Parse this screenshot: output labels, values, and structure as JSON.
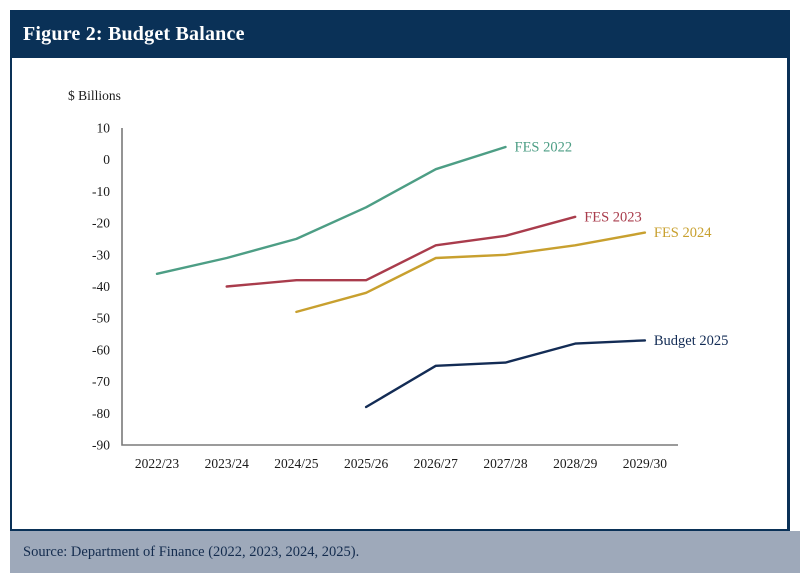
{
  "figure": {
    "title": "Figure 2: Budget Balance"
  },
  "source": {
    "text": "Source: Department of Finance (2022, 2023, 2024, 2025)."
  },
  "colors": {
    "title_bar_bg": "#0a3157",
    "title_text": "#ffffff",
    "panel_border": "#0a3157",
    "source_bar_bg": "#9ea9ba",
    "source_text": "#142c4e",
    "axis": "#7a7a7a",
    "tick_text": "#1b1b1b"
  },
  "chart_data": {
    "type": "line",
    "title": "Figure 2: Budget Balance",
    "unit_label": "$ Billions",
    "xlabel": "",
    "ylabel": "$ Billions",
    "categories": [
      "2022/23",
      "2023/24",
      "2024/25",
      "2025/26",
      "2026/27",
      "2027/28",
      "2028/29",
      "2029/30"
    ],
    "ylim": [
      -90,
      10
    ],
    "yticks": [
      10,
      0,
      -10,
      -20,
      -30,
      -40,
      -50,
      -60,
      -70,
      -80,
      -90
    ],
    "grid": false,
    "legend_position": "end-of-line labels",
    "series": [
      {
        "name": "FES 2022",
        "color": "#4d9e85",
        "start_index": 0,
        "values": [
          -36,
          -31,
          -25,
          -15,
          -3,
          4
        ]
      },
      {
        "name": "FES 2023",
        "color": "#a93c4c",
        "start_index": 1,
        "values": [
          -40,
          -38,
          -38,
          -27,
          -24,
          -18
        ]
      },
      {
        "name": "FES 2024",
        "color": "#c8a02f",
        "start_index": 2,
        "values": [
          -48,
          -42,
          -31,
          -30,
          -27,
          -23
        ]
      },
      {
        "name": "Budget 2025",
        "color": "#132c55",
        "start_index": 3,
        "values": [
          -78,
          -65,
          -64,
          -58,
          -57
        ]
      }
    ]
  }
}
